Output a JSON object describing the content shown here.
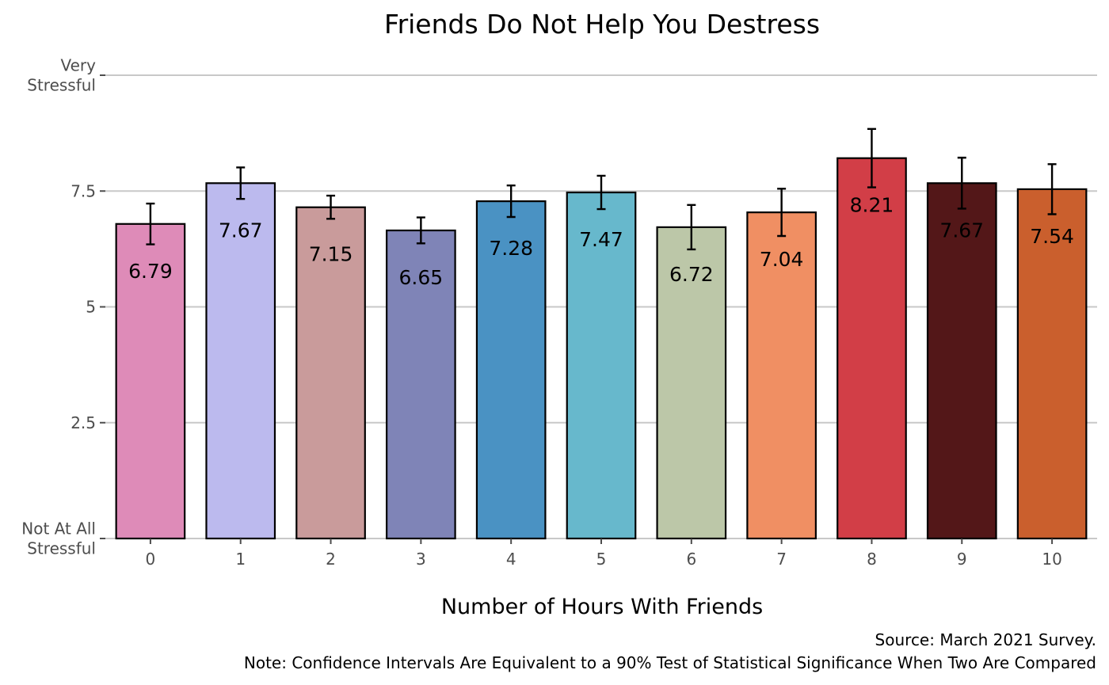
{
  "chart_data": {
    "type": "bar",
    "title": "Friends Do Not Help You Destress",
    "xlabel": "Number of Hours With Friends",
    "ylabel": "",
    "categories": [
      "0",
      "1",
      "2",
      "3",
      "4",
      "5",
      "6",
      "7",
      "8",
      "9",
      "10"
    ],
    "values": [
      6.79,
      7.67,
      7.15,
      6.65,
      7.28,
      7.47,
      6.72,
      7.04,
      8.21,
      7.67,
      7.54
    ],
    "value_labels": [
      "6.79",
      "7.67",
      "7.15",
      "6.65",
      "7.28",
      "7.47",
      "6.72",
      "7.04",
      "8.21",
      "7.67",
      "7.54"
    ],
    "error_low": [
      6.35,
      7.33,
      6.9,
      6.37,
      6.94,
      7.11,
      6.24,
      6.53,
      7.58,
      7.12,
      7.0
    ],
    "error_high": [
      7.23,
      8.01,
      7.4,
      6.93,
      7.62,
      7.83,
      7.2,
      7.55,
      8.84,
      8.22,
      8.08
    ],
    "colors": [
      "#de8bb8",
      "#bcbaee",
      "#c99b9b",
      "#7f84b7",
      "#4a92c3",
      "#67b8cc",
      "#bcc7a8",
      "#f08f63",
      "#d23e47",
      "#531718",
      "#ca5f2d"
    ],
    "ylim": [
      0,
      10
    ],
    "yticks": [
      {
        "value": 0,
        "label": [
          "Not At All",
          "Stressful"
        ]
      },
      {
        "value": 2.5,
        "label": [
          "2.5"
        ]
      },
      {
        "value": 5,
        "label": [
          "5"
        ]
      },
      {
        "value": 7.5,
        "label": [
          "7.5"
        ]
      },
      {
        "value": 10,
        "label": [
          "Very",
          "Stressful"
        ]
      }
    ],
    "grid": true,
    "legend": "none",
    "caption": [
      "Source: March 2021 Survey.",
      "Note: Confidence Intervals Are Equivalent to a 90% Test of Statistical Significance When Two Are Compared"
    ]
  }
}
